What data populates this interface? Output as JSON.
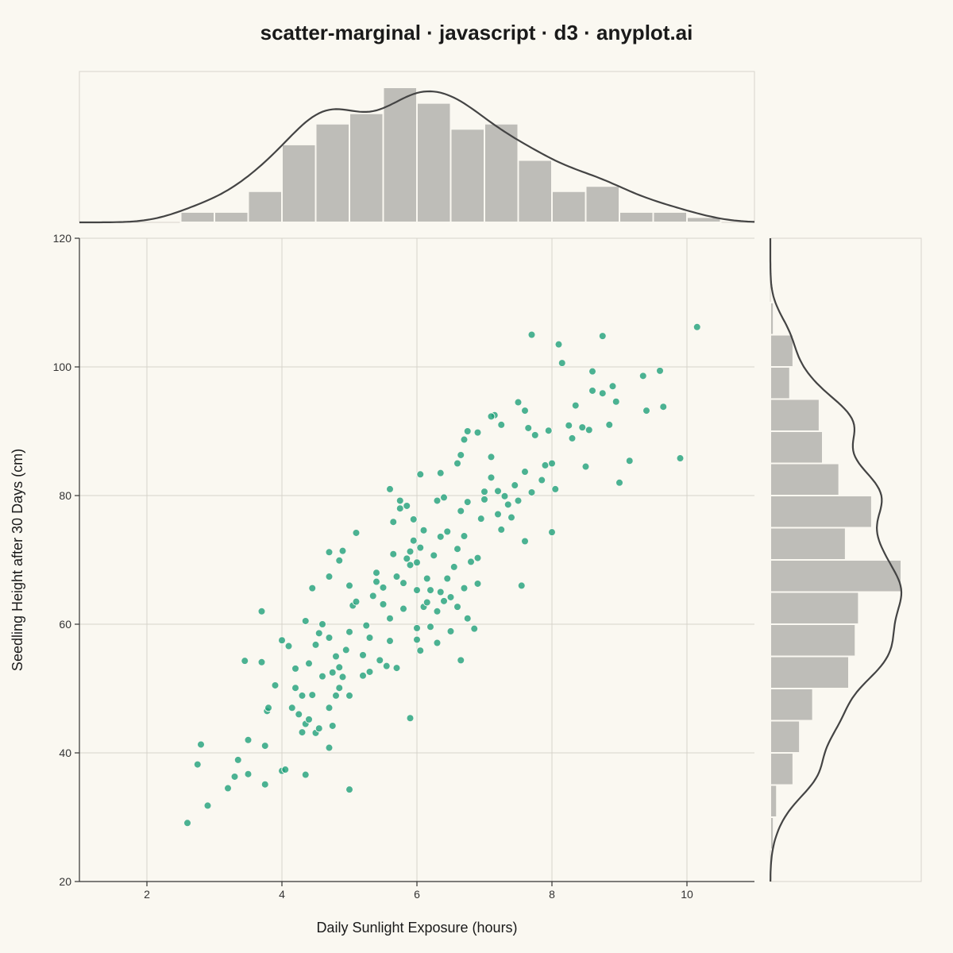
{
  "chart_data": {
    "type": "scatter",
    "title": "scatter-marginal · javascript · d3 · anyplot.ai",
    "xlabel": "Daily Sunlight Exposure (hours)",
    "ylabel": "Seedling Height after 30 Days (cm)",
    "xlim": [
      1,
      11
    ],
    "ylim": [
      20,
      120
    ],
    "x_ticks": [
      2,
      4,
      6,
      8,
      10
    ],
    "y_ticks": [
      20,
      40,
      60,
      80,
      100,
      120
    ],
    "grid": true,
    "colors": {
      "points": "#1A9E77",
      "bars": "#BEBDB8",
      "kde": "#444444",
      "background": "#FAF8F1"
    },
    "marginal_x_histogram": {
      "bin_edges": [
        1.0,
        1.5,
        2.0,
        2.5,
        3.0,
        3.5,
        4.0,
        4.5,
        5.0,
        5.5,
        6.0,
        6.5,
        7.0,
        7.5,
        8.0,
        8.5,
        9.0,
        9.5,
        10.0,
        10.5,
        11.0
      ],
      "counts": [
        0,
        0,
        0,
        2,
        2,
        6,
        15,
        19,
        21,
        26,
        23,
        18,
        19,
        12,
        6,
        7,
        2,
        2,
        1,
        0
      ]
    },
    "marginal_y_histogram": {
      "bin_edges": [
        20,
        25,
        30,
        35,
        40,
        45,
        50,
        55,
        60,
        65,
        70,
        75,
        80,
        85,
        90,
        95,
        100,
        105,
        110,
        115,
        120
      ],
      "counts": [
        0,
        1,
        2,
        7,
        9,
        13,
        24,
        26,
        27,
        40,
        23,
        31,
        21,
        16,
        15,
        6,
        7,
        1,
        0,
        0
      ]
    },
    "points": [
      [
        2.6,
        29.1
      ],
      [
        2.9,
        31.8
      ],
      [
        2.75,
        38.2
      ],
      [
        2.8,
        41.3
      ],
      [
        3.2,
        34.5
      ],
      [
        3.3,
        36.3
      ],
      [
        3.35,
        38.9
      ],
      [
        3.5,
        36.7
      ],
      [
        3.5,
        42.0
      ],
      [
        3.75,
        35.1
      ],
      [
        3.75,
        41.1
      ],
      [
        3.78,
        46.5
      ],
      [
        3.8,
        47.0
      ],
      [
        3.45,
        54.3
      ],
      [
        3.7,
        54.1
      ],
      [
        3.7,
        62.0
      ],
      [
        3.9,
        50.5
      ],
      [
        4.0,
        37.2
      ],
      [
        4.05,
        37.4
      ],
      [
        4.35,
        36.6
      ],
      [
        5.0,
        34.3
      ],
      [
        4.0,
        57.5
      ],
      [
        4.1,
        56.6
      ],
      [
        4.15,
        47.0
      ],
      [
        4.2,
        50.1
      ],
      [
        4.2,
        53.1
      ],
      [
        4.25,
        46.0
      ],
      [
        4.3,
        43.2
      ],
      [
        4.3,
        48.9
      ],
      [
        4.35,
        44.5
      ],
      [
        4.4,
        45.2
      ],
      [
        4.45,
        49.0
      ],
      [
        4.5,
        43.1
      ],
      [
        4.55,
        43.8
      ],
      [
        4.6,
        51.9
      ],
      [
        4.7,
        40.8
      ],
      [
        4.7,
        47.0
      ],
      [
        4.75,
        44.2
      ],
      [
        4.8,
        48.9
      ],
      [
        4.85,
        50.1
      ],
      [
        4.4,
        53.9
      ],
      [
        4.5,
        56.8
      ],
      [
        4.55,
        58.6
      ],
      [
        4.6,
        60.0
      ],
      [
        4.7,
        57.9
      ],
      [
        4.75,
        52.5
      ],
      [
        4.8,
        55.0
      ],
      [
        4.85,
        53.3
      ],
      [
        4.9,
        51.8
      ],
      [
        4.95,
        56.0
      ],
      [
        4.35,
        60.5
      ],
      [
        4.45,
        65.6
      ],
      [
        4.7,
        67.4
      ],
      [
        4.7,
        71.2
      ],
      [
        4.9,
        71.4
      ],
      [
        4.85,
        69.9
      ],
      [
        5.0,
        66.0
      ],
      [
        5.05,
        62.9
      ],
      [
        5.1,
        74.2
      ],
      [
        5.1,
        63.5
      ],
      [
        5.0,
        58.8
      ],
      [
        5.0,
        48.9
      ],
      [
        5.2,
        52.0
      ],
      [
        5.2,
        55.2
      ],
      [
        5.25,
        59.8
      ],
      [
        5.3,
        52.6
      ],
      [
        5.3,
        57.9
      ],
      [
        5.35,
        64.4
      ],
      [
        5.4,
        66.6
      ],
      [
        5.4,
        68.0
      ],
      [
        5.45,
        54.4
      ],
      [
        5.5,
        63.1
      ],
      [
        5.5,
        65.7
      ],
      [
        5.55,
        53.5
      ],
      [
        5.6,
        57.4
      ],
      [
        5.6,
        60.9
      ],
      [
        5.65,
        70.9
      ],
      [
        5.65,
        75.9
      ],
      [
        5.7,
        53.2
      ],
      [
        5.7,
        67.4
      ],
      [
        5.75,
        78.0
      ],
      [
        5.75,
        79.2
      ],
      [
        5.8,
        62.4
      ],
      [
        5.8,
        66.4
      ],
      [
        5.85,
        70.2
      ],
      [
        5.85,
        78.4
      ],
      [
        5.9,
        45.4
      ],
      [
        5.9,
        69.2
      ],
      [
        5.95,
        73.0
      ],
      [
        6.0,
        57.6
      ],
      [
        5.6,
        81.0
      ],
      [
        5.9,
        71.3
      ],
      [
        5.95,
        76.3
      ],
      [
        6.0,
        59.4
      ],
      [
        6.0,
        65.3
      ],
      [
        6.0,
        69.6
      ],
      [
        6.05,
        55.9
      ],
      [
        6.05,
        71.9
      ],
      [
        6.1,
        62.7
      ],
      [
        6.1,
        74.6
      ],
      [
        6.15,
        63.4
      ],
      [
        6.15,
        67.1
      ],
      [
        6.2,
        59.6
      ],
      [
        6.2,
        65.3
      ],
      [
        6.25,
        70.7
      ],
      [
        6.3,
        57.1
      ],
      [
        6.3,
        62.0
      ],
      [
        6.35,
        65.0
      ],
      [
        6.35,
        73.6
      ],
      [
        6.4,
        79.7
      ],
      [
        6.4,
        63.6
      ],
      [
        6.45,
        67.1
      ],
      [
        6.45,
        74.4
      ],
      [
        6.5,
        58.9
      ],
      [
        6.5,
        64.2
      ],
      [
        6.55,
        68.9
      ],
      [
        6.6,
        62.7
      ],
      [
        6.6,
        71.7
      ],
      [
        6.65,
        54.4
      ],
      [
        6.65,
        77.6
      ],
      [
        6.7,
        65.6
      ],
      [
        6.7,
        73.7
      ],
      [
        6.75,
        60.9
      ],
      [
        6.75,
        79.0
      ],
      [
        6.8,
        69.7
      ],
      [
        6.85,
        59.3
      ],
      [
        6.9,
        70.3
      ],
      [
        6.9,
        66.3
      ],
      [
        6.95,
        76.4
      ],
      [
        7.0,
        79.4
      ],
      [
        6.05,
        83.3
      ],
      [
        6.3,
        79.2
      ],
      [
        6.35,
        83.5
      ],
      [
        6.6,
        85.0
      ],
      [
        6.65,
        86.3
      ],
      [
        6.7,
        88.7
      ],
      [
        6.75,
        90.0
      ],
      [
        6.9,
        89.8
      ],
      [
        7.0,
        80.6
      ],
      [
        7.1,
        82.8
      ],
      [
        7.1,
        86.0
      ],
      [
        7.15,
        92.5
      ],
      [
        7.2,
        77.1
      ],
      [
        7.2,
        80.7
      ],
      [
        7.25,
        74.7
      ],
      [
        7.3,
        79.9
      ],
      [
        7.35,
        78.6
      ],
      [
        7.4,
        76.6
      ],
      [
        7.45,
        81.6
      ],
      [
        7.5,
        79.2
      ],
      [
        7.55,
        66.0
      ],
      [
        7.6,
        72.9
      ],
      [
        7.6,
        83.7
      ],
      [
        7.65,
        90.5
      ],
      [
        7.7,
        80.5
      ],
      [
        7.75,
        89.4
      ],
      [
        7.85,
        82.4
      ],
      [
        7.9,
        84.7
      ],
      [
        7.95,
        90.1
      ],
      [
        8.0,
        74.3
      ],
      [
        8.05,
        81.0
      ],
      [
        8.0,
        85.0
      ],
      [
        8.25,
        90.9
      ],
      [
        8.3,
        88.9
      ],
      [
        8.35,
        94.0
      ],
      [
        8.45,
        90.6
      ],
      [
        8.5,
        84.5
      ],
      [
        8.55,
        90.2
      ],
      [
        8.6,
        96.3
      ],
      [
        8.6,
        99.3
      ],
      [
        8.75,
        95.9
      ],
      [
        8.85,
        91.0
      ],
      [
        8.9,
        97.0
      ],
      [
        8.95,
        94.6
      ],
      [
        9.0,
        82.0
      ],
      [
        9.15,
        85.4
      ],
      [
        9.35,
        98.6
      ],
      [
        9.4,
        93.2
      ],
      [
        9.6,
        99.4
      ],
      [
        9.65,
        93.8
      ],
      [
        9.9,
        85.8
      ],
      [
        10.15,
        106.2
      ],
      [
        7.7,
        105.0
      ],
      [
        8.1,
        103.5
      ],
      [
        8.15,
        100.6
      ],
      [
        8.75,
        104.8
      ],
      [
        7.5,
        94.5
      ],
      [
        7.6,
        93.2
      ],
      [
        7.1,
        92.3
      ],
      [
        7.25,
        91.0
      ]
    ]
  }
}
